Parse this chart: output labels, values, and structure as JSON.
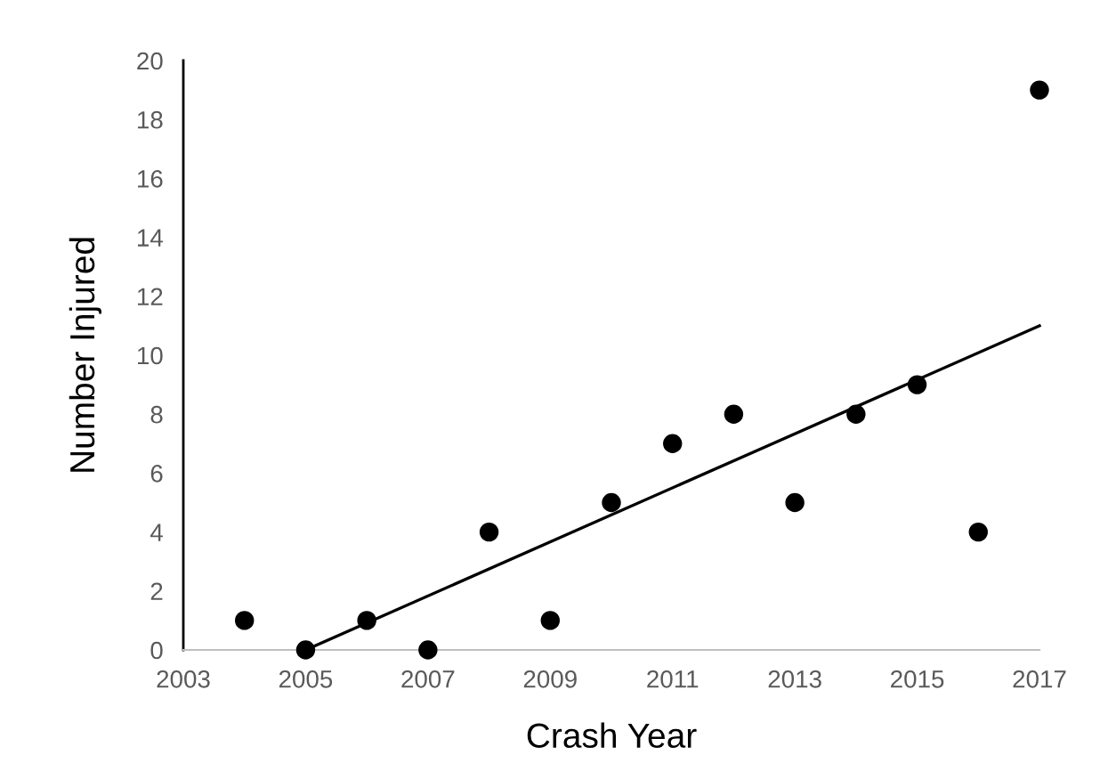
{
  "chart_data": {
    "type": "scatter",
    "xlabel": "Crash Year",
    "ylabel": "Number Injured",
    "series": [
      {
        "type": "scatter",
        "color": "#000000",
        "marker": "circle",
        "x": [
          2004,
          2005,
          2006,
          2007,
          2008,
          2009,
          2010,
          2011,
          2012,
          2013,
          2014,
          2015,
          2016,
          2017
        ],
        "values": [
          1,
          0,
          1,
          0,
          4,
          1,
          5,
          7,
          8,
          5,
          8,
          9,
          4,
          19
        ]
      },
      {
        "type": "line",
        "color": "#000000",
        "x": [
          2005,
          2017
        ],
        "values": [
          0,
          11
        ]
      }
    ],
    "xlim": [
      2003,
      2017
    ],
    "xticks": [
      2003,
      2005,
      2007,
      2009,
      2011,
      2013,
      2015,
      2017
    ],
    "ylim": [
      0,
      20
    ],
    "yticks": [
      0,
      2,
      4,
      6,
      8,
      10,
      12,
      14,
      16,
      18,
      20
    ],
    "grid": false,
    "legend": false
  }
}
